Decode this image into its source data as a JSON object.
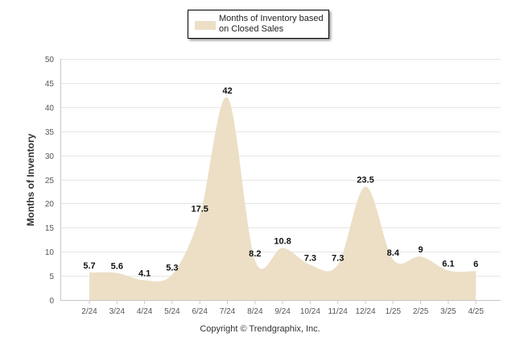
{
  "legend": {
    "label": "Months of Inventory based\non Closed Sales"
  },
  "footer": {
    "copyright": "Copyright © Trendgraphix, Inc."
  },
  "colors": {
    "fill": "#ecdfc6",
    "label": "#111111",
    "grid": "#e6e6e6",
    "axis_text": "#555555"
  },
  "chart_data": {
    "type": "area",
    "title": "",
    "xlabel": "",
    "ylabel": "Months of Inventory",
    "categories": [
      "2/24",
      "3/24",
      "4/24",
      "5/24",
      "6/24",
      "7/24",
      "8/24",
      "9/24",
      "10/24",
      "11/24",
      "12/24",
      "1/25",
      "2/25",
      "3/25",
      "4/25"
    ],
    "series": [
      {
        "name": "Months of Inventory based on Closed Sales",
        "values": [
          5.7,
          5.6,
          4.1,
          5.3,
          17.5,
          42,
          8.2,
          10.8,
          7.3,
          7.3,
          23.5,
          8.4,
          9,
          6.1,
          6
        ],
        "labels": [
          "5.7",
          "5.6",
          "4.1",
          "5.3",
          "17.5",
          "42",
          "8.2",
          "10.8",
          "7.3",
          "7.3",
          "23.5",
          "8.4",
          "9",
          "6.1",
          "6"
        ]
      }
    ],
    "yticks": [
      0,
      5,
      10,
      15,
      20,
      25,
      30,
      35,
      40,
      45,
      50
    ],
    "ylim": [
      0,
      50
    ],
    "grid": true,
    "legend_position": "top-center"
  }
}
